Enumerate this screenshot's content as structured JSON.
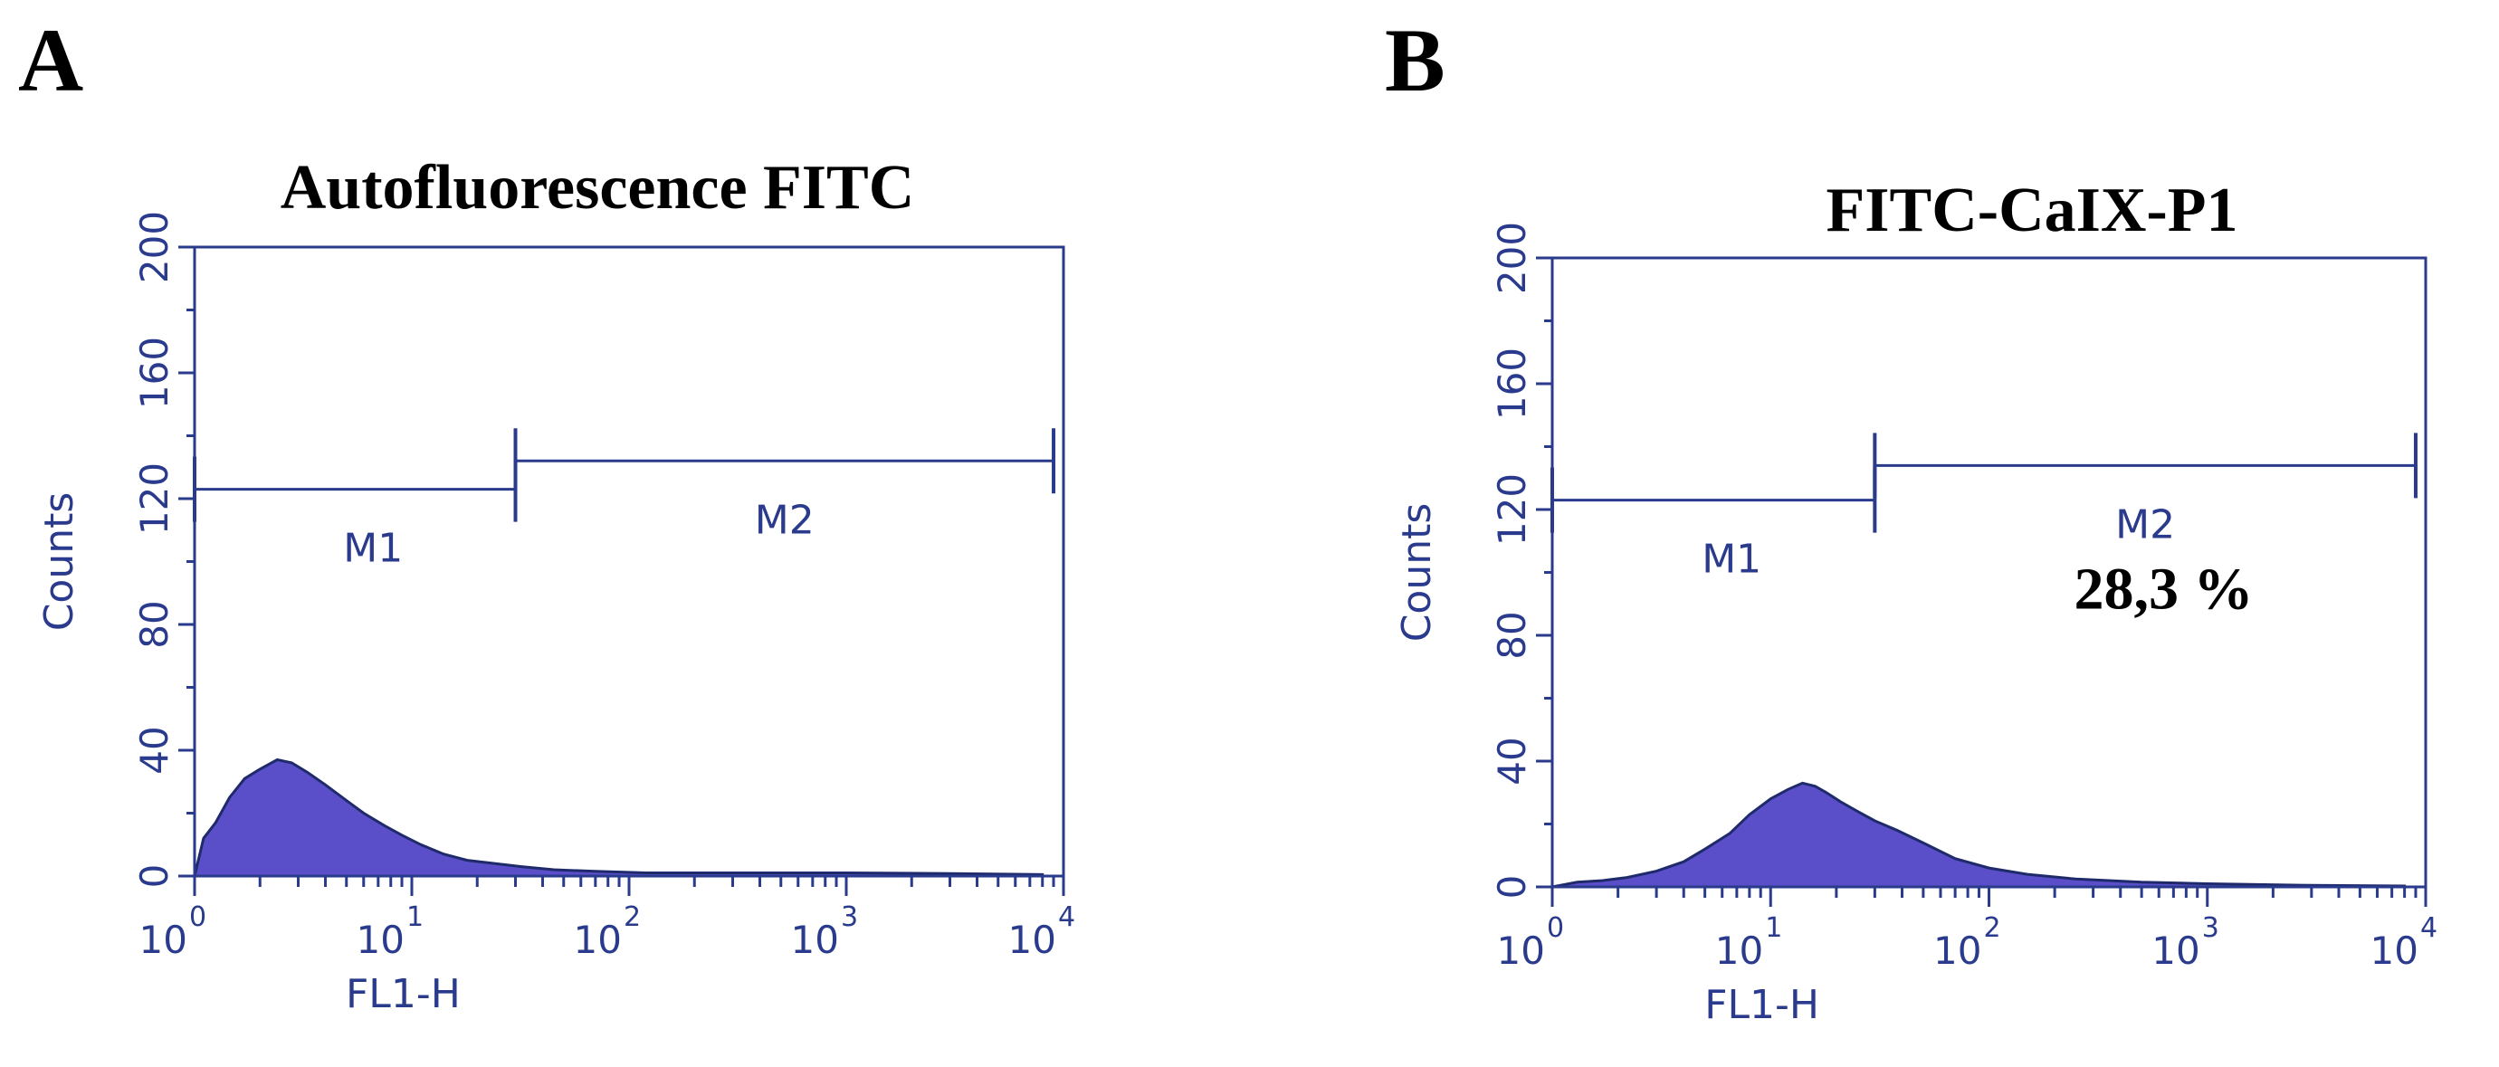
{
  "colors": {
    "axis": "#2a3a8c",
    "fill": "#5a4fc9",
    "text": "#000000"
  },
  "chart_data": [
    {
      "panel_label": "A",
      "type": "area",
      "title": "Autofluorescence FITC",
      "xlabel": "FL1-H",
      "ylabel": "Counts",
      "xscale": "log",
      "xlim": [
        1,
        10000
      ],
      "ylim": [
        0,
        200
      ],
      "yticks": [
        "0",
        "40",
        "80",
        "120",
        "160",
        "200"
      ],
      "xticks": [
        {
          "base": "10",
          "exp": "0"
        },
        {
          "base": "10",
          "exp": "1"
        },
        {
          "base": "10",
          "exp": "2"
        },
        {
          "base": "10",
          "exp": "3"
        },
        {
          "base": "10",
          "exp": "4"
        }
      ],
      "markers": [
        {
          "name": "M1",
          "x_start": 1,
          "x_end": 30,
          "y": 123
        },
        {
          "name": "M2",
          "x_start": 30,
          "x_end": 9000,
          "y": 132
        }
      ],
      "annotation": "",
      "histogram": {
        "x": [
          1.0,
          1.1,
          1.25,
          1.45,
          1.7,
          2.0,
          2.4,
          2.8,
          3.3,
          4.0,
          5.0,
          6.0,
          7.5,
          9.0,
          11,
          14,
          18,
          24,
          32,
          45,
          70,
          120,
          300,
          1000,
          3000,
          8000
        ],
        "counts": [
          0,
          12,
          17,
          25,
          31,
          34,
          37,
          36,
          33,
          29,
          24,
          20,
          16,
          13,
          10,
          7,
          5,
          4,
          3,
          2,
          1.5,
          1,
          1,
          1,
          0.8,
          0.5
        ]
      }
    },
    {
      "panel_label": "B",
      "type": "area",
      "title": "FITC-CaIX-P1",
      "xlabel": "FL1-H",
      "ylabel": "Counts",
      "xscale": "log",
      "xlim": [
        1,
        10000
      ],
      "ylim": [
        0,
        200
      ],
      "yticks": [
        "0",
        "40",
        "80",
        "120",
        "160",
        "200"
      ],
      "xticks": [
        {
          "base": "10",
          "exp": "0"
        },
        {
          "base": "10",
          "exp": "1"
        },
        {
          "base": "10",
          "exp": "2"
        },
        {
          "base": "10",
          "exp": "3"
        },
        {
          "base": "10",
          "exp": "4"
        }
      ],
      "markers": [
        {
          "name": "M1",
          "x_start": 1,
          "x_end": 30,
          "y": 123
        },
        {
          "name": "M2",
          "x_start": 30,
          "x_end": 9000,
          "y": 134
        }
      ],
      "annotation": "28,3 %",
      "histogram": {
        "x": [
          1.0,
          1.3,
          1.7,
          2.2,
          3.0,
          4.0,
          5.0,
          6.5,
          8.0,
          10,
          12,
          14,
          16,
          18,
          21,
          25,
          30,
          38,
          50,
          70,
          100,
          150,
          250,
          500,
          1000,
          3000,
          8000
        ],
        "counts": [
          0,
          1.5,
          2,
          3,
          5,
          8,
          12,
          17,
          23,
          28,
          31,
          33,
          32,
          30,
          27,
          24,
          21,
          18,
          14,
          9,
          6,
          4,
          2.5,
          1.5,
          1,
          0.5,
          0.3
        ]
      }
    }
  ]
}
